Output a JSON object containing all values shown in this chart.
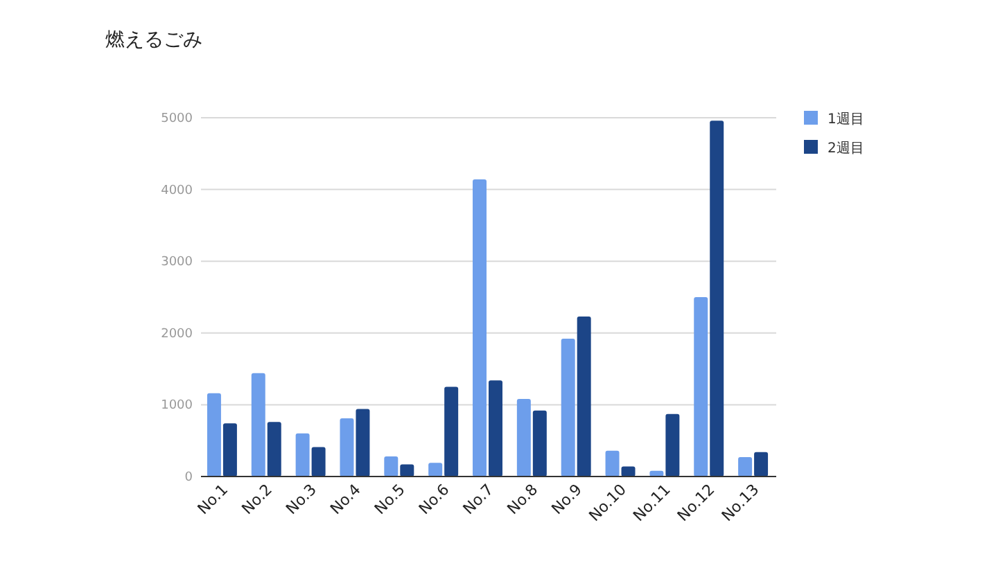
{
  "chart_data": {
    "type": "bar",
    "title": "燃えるごみ",
    "categories": [
      "No.1",
      "No.2",
      "No.3",
      "No.4",
      "No.5",
      "No.6",
      "No.7",
      "No.8",
      "No.9",
      "No.10",
      "No.11",
      "No.12",
      "No.13"
    ],
    "series": [
      {
        "name": "1週目",
        "color": "#6d9eeb",
        "values": [
          1160,
          1440,
          600,
          810,
          280,
          190,
          4140,
          1080,
          1920,
          360,
          80,
          2500,
          270
        ]
      },
      {
        "name": "2週目",
        "color": "#1c4587",
        "values": [
          740,
          760,
          410,
          940,
          170,
          1250,
          1340,
          920,
          2230,
          140,
          870,
          4960,
          340
        ]
      }
    ],
    "ylim": [
      0,
      5000
    ],
    "yticks": [
      0,
      1000,
      2000,
      3000,
      4000,
      5000
    ],
    "grid": "y",
    "legend": "right"
  }
}
